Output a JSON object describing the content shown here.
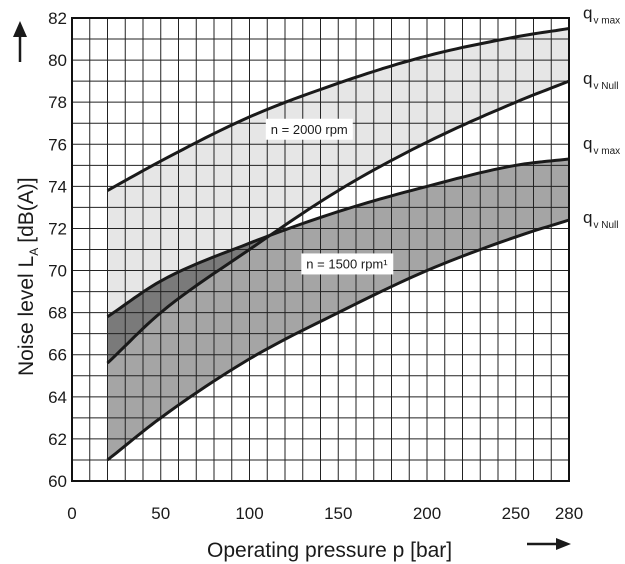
{
  "chart_data": {
    "type": "area",
    "xlabel": "Operating pressure p [bar]",
    "ylabel_main": "Noise level L",
    "ylabel_sub": "A",
    "ylabel_unit": "[dB(A)]",
    "xlim": [
      0,
      280
    ],
    "ylim": [
      60,
      82
    ],
    "xticks": [
      0,
      50,
      100,
      150,
      200,
      250,
      280
    ],
    "yticks": [
      60,
      62,
      64,
      66,
      68,
      70,
      72,
      74,
      76,
      78,
      80,
      82
    ],
    "grid": true,
    "grid_x_step": 10,
    "grid_y_step": 1,
    "colors": {
      "band_2000": "#e6e6e6",
      "band_1500": "#a5a5a5",
      "band_overlap": "#7a7a7a",
      "line": "#1a1a1a"
    },
    "bands": [
      {
        "label": "n = 2000 rpm",
        "label_pos": {
          "x": 112,
          "y": 76.5
        },
        "fill": "#e6e6e6",
        "upper": {
          "name": "q",
          "sub": "v max",
          "x": [
            20,
            50,
            100,
            150,
            200,
            250,
            280
          ],
          "y": [
            73.8,
            75.2,
            77.3,
            78.9,
            80.2,
            81.1,
            81.5
          ]
        },
        "lower": {
          "name": "q",
          "sub": "v Null",
          "x": [
            20,
            50,
            100,
            150,
            200,
            250,
            280
          ],
          "y": [
            65.6,
            68.0,
            71.0,
            73.8,
            76.1,
            78.0,
            79.0
          ]
        }
      },
      {
        "label": "n = 1500 rpm¹",
        "label_pos": {
          "x": 132,
          "y": 70.1
        },
        "fill": "#a5a5a5",
        "upper": {
          "name": "q",
          "sub": "v max",
          "x": [
            20,
            50,
            100,
            150,
            200,
            250,
            280
          ],
          "y": [
            67.8,
            69.5,
            71.3,
            72.8,
            74.0,
            75.0,
            75.3
          ]
        },
        "lower": {
          "name": "q",
          "sub": "v Null",
          "x": [
            20,
            50,
            100,
            150,
            200,
            250,
            280
          ],
          "y": [
            61.0,
            63.0,
            65.8,
            68.0,
            70.0,
            71.6,
            72.4
          ]
        }
      }
    ]
  }
}
